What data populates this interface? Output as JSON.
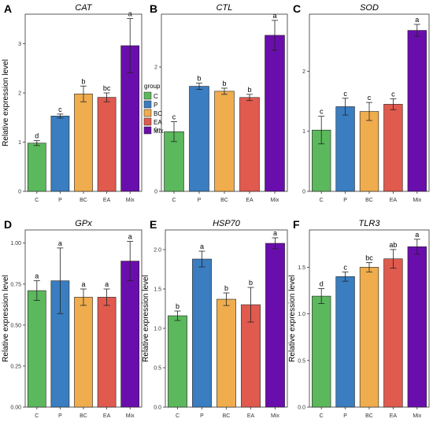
{
  "colors": {
    "C": "#5cb85c",
    "P": "#3a7dc0",
    "BC": "#f0ad4e",
    "EA": "#e05a4e",
    "Mix": "#6a0dad"
  },
  "legend": {
    "title": "group",
    "items": [
      "C",
      "P",
      "BC",
      "EA",
      "Mix"
    ],
    "placement": "between panels A and B"
  },
  "chart_data": [
    {
      "type": "bar",
      "panel": "A",
      "title": "CAT",
      "ylabel": "Relative expression level",
      "categories": [
        "C",
        "P",
        "BC",
        "EA",
        "Mix"
      ],
      "values": [
        0.98,
        1.53,
        1.98,
        1.91,
        2.96
      ],
      "errors": [
        0.05,
        0.04,
        0.16,
        0.09,
        0.55
      ],
      "sig": [
        "d",
        "c",
        "b",
        "bc",
        "a"
      ],
      "ylim": [
        0,
        3.6
      ],
      "yticks": [
        0,
        1,
        2,
        3
      ],
      "yticklabels": [
        "0",
        "1",
        "2",
        "3"
      ]
    },
    {
      "type": "bar",
      "panel": "B",
      "title": "CTL",
      "ylabel": "",
      "categories": [
        "C",
        "P",
        "BC",
        "EA",
        "Mix"
      ],
      "values": [
        0.96,
        1.69,
        1.61,
        1.51,
        2.51
      ],
      "errors": [
        0.16,
        0.05,
        0.05,
        0.05,
        0.24
      ],
      "sig": [
        "c",
        "b",
        "b",
        "b",
        "a"
      ],
      "ylim": [
        0,
        2.85
      ],
      "yticks": [
        0,
        1,
        2
      ],
      "yticklabels": [
        "0",
        "1",
        "2"
      ]
    },
    {
      "type": "bar",
      "panel": "C",
      "title": "SOD",
      "ylabel": "",
      "categories": [
        "C",
        "P",
        "BC",
        "EA",
        "Mix"
      ],
      "values": [
        1.02,
        1.41,
        1.33,
        1.45,
        2.68
      ],
      "errors": [
        0.23,
        0.14,
        0.15,
        0.09,
        0.1
      ],
      "sig": [
        "c",
        "c",
        "c",
        "c",
        "a"
      ],
      "ylim": [
        0,
        2.95
      ],
      "yticks": [
        0,
        1,
        2
      ],
      "yticklabels": [
        "0",
        "1",
        "2"
      ]
    },
    {
      "type": "bar",
      "panel": "D",
      "title": "GPx",
      "ylabel": "Relative expression level",
      "categories": [
        "C",
        "P",
        "BC",
        "EA",
        "Mix"
      ],
      "values": [
        0.71,
        0.77,
        0.67,
        0.67,
        0.89
      ],
      "errors": [
        0.06,
        0.2,
        0.05,
        0.05,
        0.12
      ],
      "sig": [
        "a",
        "a",
        "a",
        "a",
        "a"
      ],
      "ylim": [
        0,
        1.08
      ],
      "yticks": [
        0,
        0.25,
        0.5,
        0.75,
        1
      ],
      "yticklabels": [
        "0.00",
        "0.25",
        "0.50",
        "0.75",
        "1.00"
      ]
    },
    {
      "type": "bar",
      "panel": "E",
      "title": "HSP70",
      "ylabel": "Relative expression level",
      "categories": [
        "C",
        "P",
        "BC",
        "EA",
        "Mix"
      ],
      "values": [
        1.16,
        1.88,
        1.37,
        1.3,
        2.08
      ],
      "errors": [
        0.06,
        0.1,
        0.08,
        0.22,
        0.07
      ],
      "sig": [
        "b",
        "a",
        "b",
        "b",
        "a"
      ],
      "ylim": [
        0,
        2.25
      ],
      "yticks": [
        0,
        0.5,
        1,
        1.5,
        2
      ],
      "yticklabels": [
        "0.0",
        "0.5",
        "1.0",
        "1.5",
        "2.0"
      ]
    },
    {
      "type": "bar",
      "panel": "F",
      "title": "TLR3",
      "ylabel": "Relative expression level",
      "categories": [
        "C",
        "P",
        "BC",
        "EA",
        "Mix"
      ],
      "values": [
        1.19,
        1.4,
        1.5,
        1.59,
        1.72
      ],
      "errors": [
        0.08,
        0.05,
        0.05,
        0.1,
        0.08
      ],
      "sig": [
        "d",
        "c",
        "bc",
        "ab",
        "a"
      ],
      "ylim": [
        0,
        1.9
      ],
      "yticks": [
        0,
        0.5,
        1,
        1.5
      ],
      "yticklabels": [
        "0.0",
        "0.5",
        "1.0",
        "1.5"
      ]
    }
  ]
}
